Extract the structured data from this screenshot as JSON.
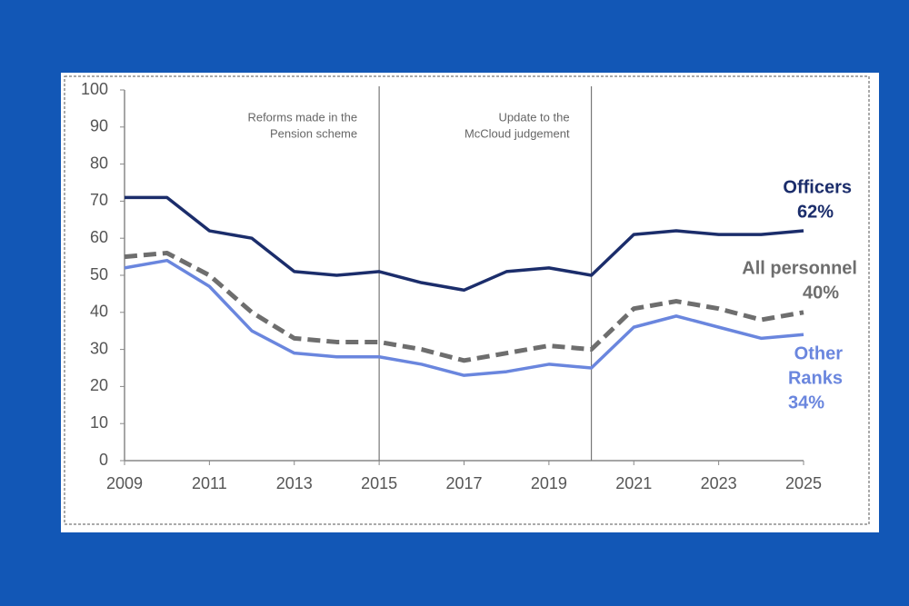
{
  "chart_data": {
    "type": "line",
    "x": [
      2009,
      2010,
      2011,
      2012,
      2013,
      2014,
      2015,
      2016,
      2017,
      2018,
      2019,
      2020,
      2021,
      2022,
      2023,
      2024,
      2025
    ],
    "xlim": [
      2009,
      2025
    ],
    "xticks": [
      2009,
      2011,
      2013,
      2015,
      2017,
      2019,
      2021,
      2023,
      2025
    ],
    "ylim": [
      0,
      100
    ],
    "yticks": [
      0,
      10,
      20,
      30,
      40,
      50,
      60,
      70,
      80,
      90,
      100
    ],
    "annotations": [
      {
        "x": 2015,
        "lines": [
          "Reforms made in the",
          "Pension scheme"
        ]
      },
      {
        "x": 2020,
        "lines": [
          "Update to the",
          "McCloud judgement"
        ]
      }
    ],
    "series": [
      {
        "name": [
          "Officers"
        ],
        "end_label": "62%",
        "color": "#1b2d6b",
        "dashed": false,
        "values": [
          71,
          71,
          62,
          60,
          51,
          50,
          51,
          48,
          46,
          51,
          52,
          50,
          61,
          62,
          61,
          61,
          62
        ]
      },
      {
        "name": [
          "All personnel"
        ],
        "end_label": "40%",
        "color": "#6e6e6e",
        "dashed": true,
        "values": [
          55,
          56,
          50,
          40,
          33,
          32,
          32,
          30,
          27,
          29,
          31,
          30,
          41,
          43,
          41,
          38,
          40
        ]
      },
      {
        "name": [
          "Other",
          "Ranks"
        ],
        "end_label": "34%",
        "color": "#6a86de",
        "dashed": false,
        "values": [
          52,
          54,
          47,
          35,
          29,
          28,
          28,
          26,
          23,
          24,
          26,
          25,
          36,
          39,
          36,
          33,
          34
        ]
      }
    ]
  }
}
